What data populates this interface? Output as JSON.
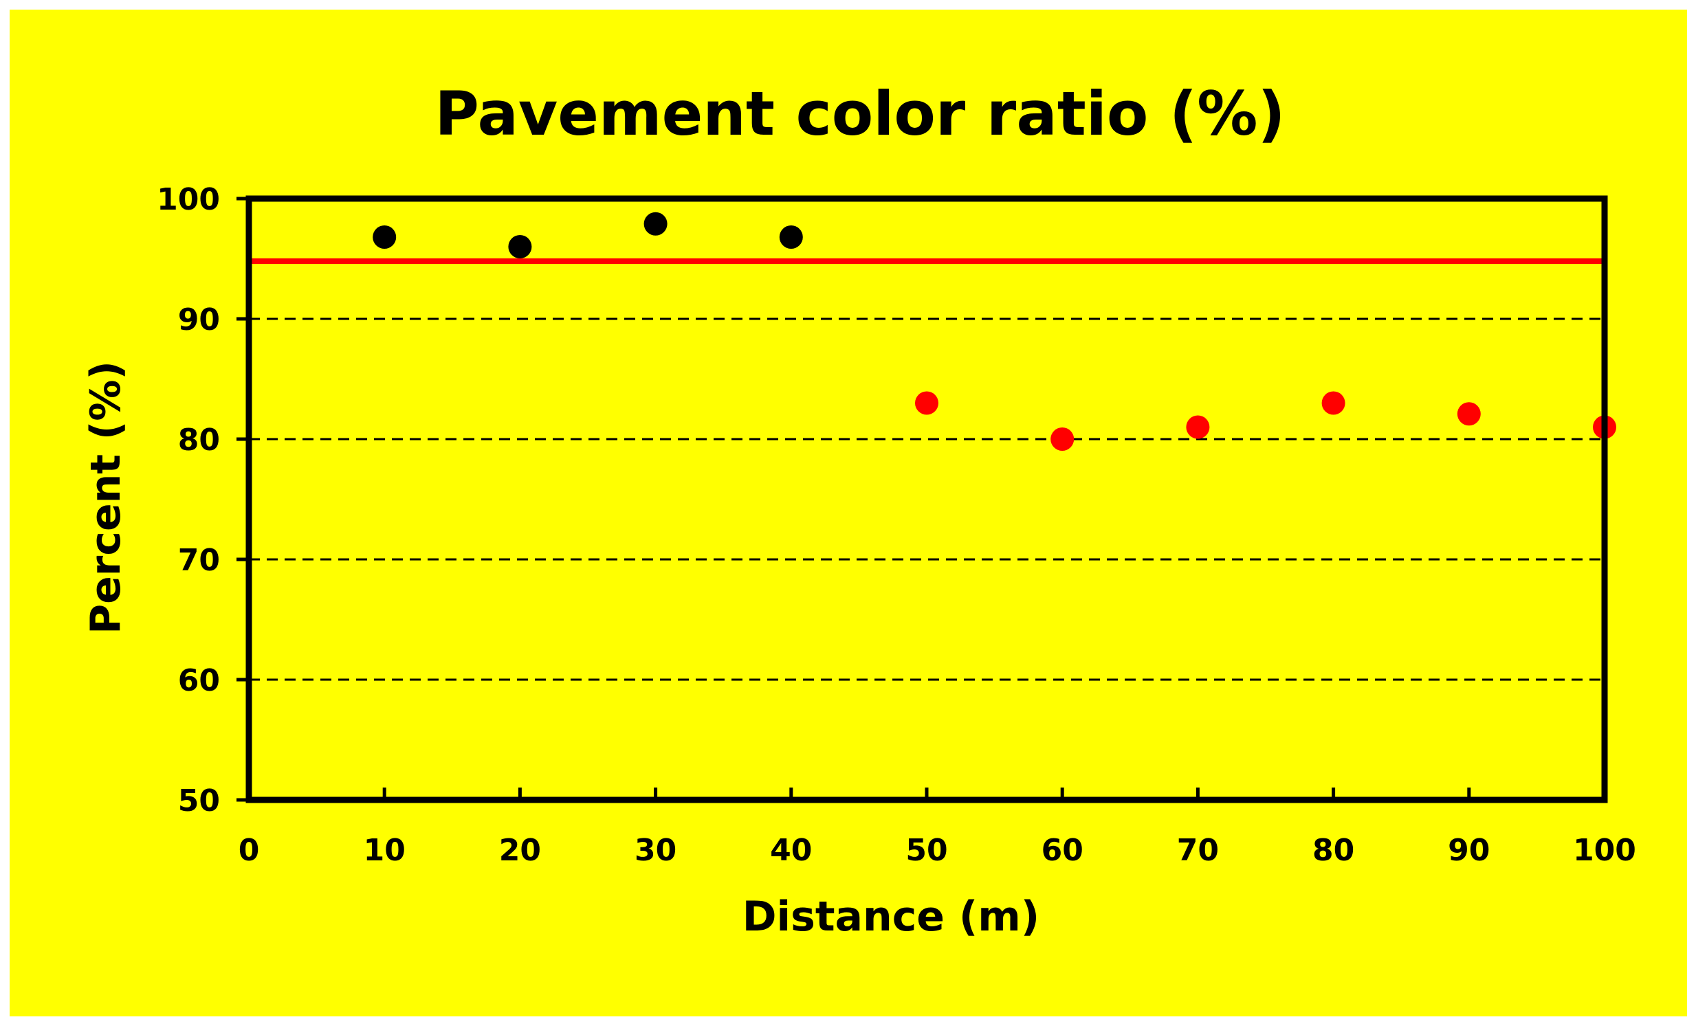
{
  "colors": {
    "background": "#ffff00",
    "axes": "#000000",
    "reference_line": "#ff0000",
    "series_black": "#000000",
    "series_red": "#ff0000"
  },
  "chart_data": {
    "type": "scatter",
    "title": "Pavement color ratio (%)",
    "xlabel": "Distance (m)",
    "ylabel": "Percent (%)",
    "xlim": [
      0,
      100
    ],
    "ylim": [
      50,
      100
    ],
    "xticks": [
      "0",
      "10",
      "20",
      "30",
      "40",
      "50",
      "60",
      "70",
      "80",
      "90",
      "100"
    ],
    "yticks": [
      "50",
      "60",
      "70",
      "80",
      "90",
      "100"
    ],
    "grid": "dashed horizontal at 60, 70, 80, 90",
    "legend": "none",
    "series": [
      {
        "color": "#000000",
        "x": [
          10,
          20,
          30,
          40
        ],
        "y": [
          96.8,
          96.0,
          97.9,
          96.8
        ]
      },
      {
        "color": "#ff0000",
        "x": [
          50,
          60,
          70,
          80,
          90,
          100
        ],
        "y": [
          83.0,
          80.0,
          81.0,
          83.0,
          82.1,
          81.0
        ]
      }
    ],
    "reference_lines": [
      {
        "y": 94.8,
        "color": "#ff0000",
        "style": "solid"
      }
    ]
  }
}
